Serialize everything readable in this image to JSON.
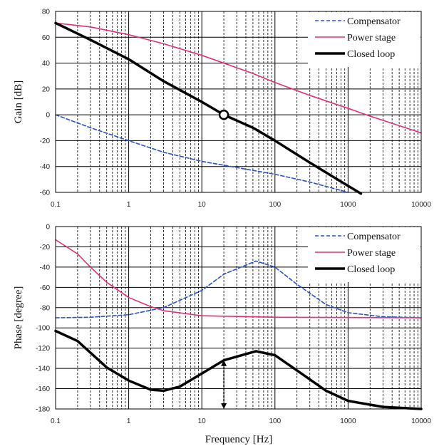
{
  "chart_data": [
    {
      "type": "line",
      "id": "gain",
      "ylabel": "Gain [dB]",
      "xlabel": "",
      "x_scale": "log",
      "xlim": [
        0.1,
        10000
      ],
      "ylim": [
        -60,
        80
      ],
      "yticks": [
        "80",
        "60",
        "40",
        "20",
        "0",
        "-20",
        "-40",
        "-60"
      ],
      "xticks": [
        "0.1",
        "1",
        "10",
        "100",
        "1000",
        "10000"
      ],
      "grid": true,
      "legend": "top-right",
      "series": [
        {
          "name": "Compensator",
          "color": "#2a52c9",
          "dash": true,
          "points": [
            [
              0.1,
              0
            ],
            [
              0.3,
              -10
            ],
            [
              1,
              -20
            ],
            [
              3,
              -29
            ],
            [
              10,
              -36
            ],
            [
              20,
              -39
            ],
            [
              50,
              -43
            ],
            [
              100,
              -46
            ],
            [
              300,
              -52
            ],
            [
              1000,
              -60
            ]
          ]
        },
        {
          "name": "Power stage",
          "color": "#e0307a",
          "dash": false,
          "points": [
            [
              0.1,
              71
            ],
            [
              0.3,
              68
            ],
            [
              1,
              62
            ],
            [
              3,
              55
            ],
            [
              10,
              46
            ],
            [
              20,
              40
            ],
            [
              50,
              32
            ],
            [
              100,
              25
            ],
            [
              300,
              15
            ],
            [
              1000,
              5
            ],
            [
              2000,
              -1
            ],
            [
              10000,
              -14
            ]
          ]
        },
        {
          "name": "Closed loop",
          "color": "#000000",
          "dash": false,
          "points": [
            [
              0.1,
              71
            ],
            [
              0.3,
              58
            ],
            [
              1,
              43
            ],
            [
              3,
              26
            ],
            [
              10,
              10
            ],
            [
              20,
              0
            ],
            [
              50,
              -10
            ],
            [
              100,
              -20
            ],
            [
              300,
              -37
            ],
            [
              1000,
              -55
            ],
            [
              1500,
              -61
            ]
          ]
        }
      ],
      "annotation": {
        "marker": "open-circle",
        "x": 20,
        "y": 0
      }
    },
    {
      "type": "line",
      "id": "phase",
      "ylabel": "Phase [degree]",
      "xlabel": "Frequency [Hz]",
      "x_scale": "log",
      "xlim": [
        0.1,
        10000
      ],
      "ylim": [
        -180,
        0
      ],
      "yticks": [
        "0",
        "-20",
        "-40",
        "-60",
        "-80",
        "-100",
        "-120",
        "-140",
        "-160",
        "-180"
      ],
      "xticks": [
        "0.1",
        "1",
        "10",
        "100",
        "1000",
        "10000"
      ],
      "grid": true,
      "legend": "top-right",
      "series": [
        {
          "name": "Compensator",
          "color": "#2a52c9",
          "dash": true,
          "points": [
            [
              0.1,
              -90
            ],
            [
              0.3,
              -89.5
            ],
            [
              1,
              -87
            ],
            [
              3,
              -80
            ],
            [
              10,
              -63
            ],
            [
              20,
              -47
            ],
            [
              55,
              -34
            ],
            [
              100,
              -40
            ],
            [
              200,
              -57
            ],
            [
              500,
              -77
            ],
            [
              1000,
              -85
            ],
            [
              3000,
              -89
            ],
            [
              10000,
              -90
            ]
          ]
        },
        {
          "name": "Power stage",
          "color": "#e0307a",
          "dash": false,
          "points": [
            [
              0.1,
              -13
            ],
            [
              0.2,
              -27
            ],
            [
              0.3,
              -40
            ],
            [
              0.5,
              -55
            ],
            [
              1,
              -70
            ],
            [
              2,
              -79
            ],
            [
              3,
              -83
            ],
            [
              10,
              -88
            ],
            [
              100,
              -89.5
            ],
            [
              10000,
              -90
            ]
          ]
        },
        {
          "name": "Closed loop",
          "color": "#000000",
          "dash": false,
          "points": [
            [
              0.1,
              -103
            ],
            [
              0.2,
              -113
            ],
            [
              0.5,
              -139
            ],
            [
              1,
              -152
            ],
            [
              2,
              -161
            ],
            [
              3,
              -162
            ],
            [
              5,
              -158
            ],
            [
              10,
              -145
            ],
            [
              20,
              -132
            ],
            [
              55,
              -123
            ],
            [
              100,
              -127
            ],
            [
              200,
              -142
            ],
            [
              500,
              -162
            ],
            [
              1000,
              -172
            ],
            [
              3000,
              -178
            ],
            [
              10000,
              -180
            ]
          ]
        }
      ],
      "annotation": {
        "marker": "double-arrow",
        "x": 20,
        "y_from": -180,
        "y_to": -132
      }
    }
  ]
}
